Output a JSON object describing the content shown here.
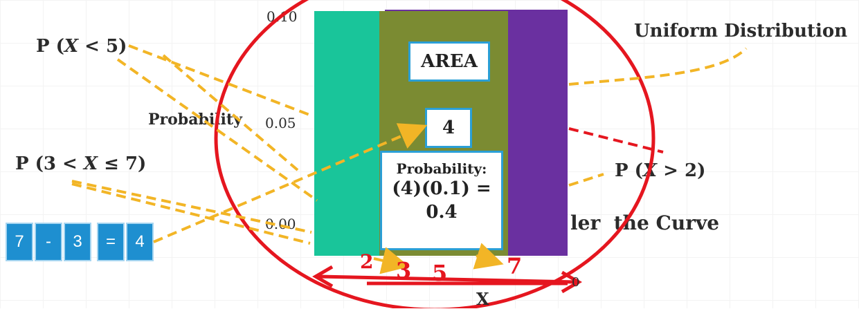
{
  "title": "Uniform Distribution",
  "y_axis": {
    "label": "Probability",
    "tick_high": "0.10",
    "tick_mid": "0.05",
    "tick_low": "0.00"
  },
  "x_axis": {
    "label": "X",
    "ticks": [
      "2",
      "3",
      "5",
      "7"
    ],
    "end_tick": "0"
  },
  "events": {
    "p_less_5": {
      "prefix": "P (",
      "var": "X",
      "rest": " < 5)"
    },
    "p_3_to_7": {
      "prefix": "P (3 < ",
      "var": "X",
      "rest": " ≤ 7)"
    },
    "p_greater_2": {
      "prefix": "P (",
      "var": "X",
      "rest": " > 2)"
    }
  },
  "area_box": {
    "label": "AREA"
  },
  "width_box": {
    "value": "4"
  },
  "prob_box": {
    "heading": "Probability:",
    "formula": "(4)(0.1) =",
    "result": "0.4"
  },
  "caption_partial": "ler  the Curve",
  "subtraction": {
    "tiles": [
      "7",
      "-",
      "3",
      "=",
      "4"
    ]
  },
  "colors": {
    "teal": "#19c59a",
    "olive": "#7b8b32",
    "purple": "#6a30a0",
    "red": "#e5161f",
    "gold": "#f2b526",
    "tile_blue": "#1e8fd0",
    "box_border": "#2a9fd6"
  }
}
